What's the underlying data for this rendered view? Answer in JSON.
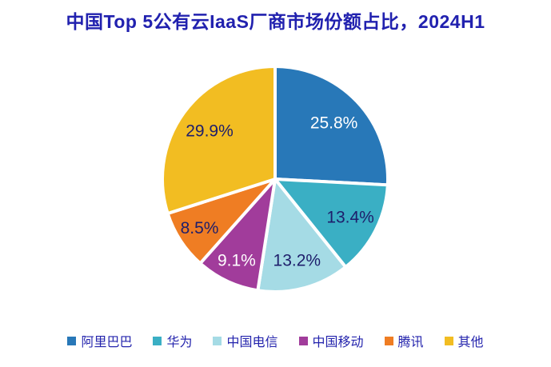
{
  "chart_data": {
    "type": "pie",
    "title": "中国Top 5公有云IaaS厂商市场份额占比，2024H1",
    "unit": "%",
    "start_angle": "12-oclock, clockwise",
    "legend_position": "bottom",
    "slices": [
      {
        "name": "阿里巴巴",
        "value": 25.8,
        "label": "25.8%",
        "color": "#2878B8",
        "label_color": "#FFFFFF"
      },
      {
        "name": "华为",
        "value": 13.4,
        "label": "13.4%",
        "color": "#3AAFC4",
        "label_color": "#1E1E6B"
      },
      {
        "name": "中国电信",
        "value": 13.2,
        "label": "13.2%",
        "color": "#A5DBE5",
        "label_color": "#1E1E6B"
      },
      {
        "name": "中国移动",
        "value": 9.1,
        "label": "9.1%",
        "color": "#A13C9B",
        "label_color": "#FFFFFF"
      },
      {
        "name": "腾讯",
        "value": 8.5,
        "label": "8.5%",
        "color": "#EF7D23",
        "label_color": "#1E1E6B"
      },
      {
        "name": "其他",
        "value": 29.9,
        "label": "29.9%",
        "color": "#F2BD22",
        "label_color": "#1E1E6B"
      }
    ]
  },
  "colors": {
    "title_text": "#2121AF",
    "legend_text": "#2424AD",
    "slice_border": "#FFFFFF",
    "background": "#FFFFFF"
  }
}
